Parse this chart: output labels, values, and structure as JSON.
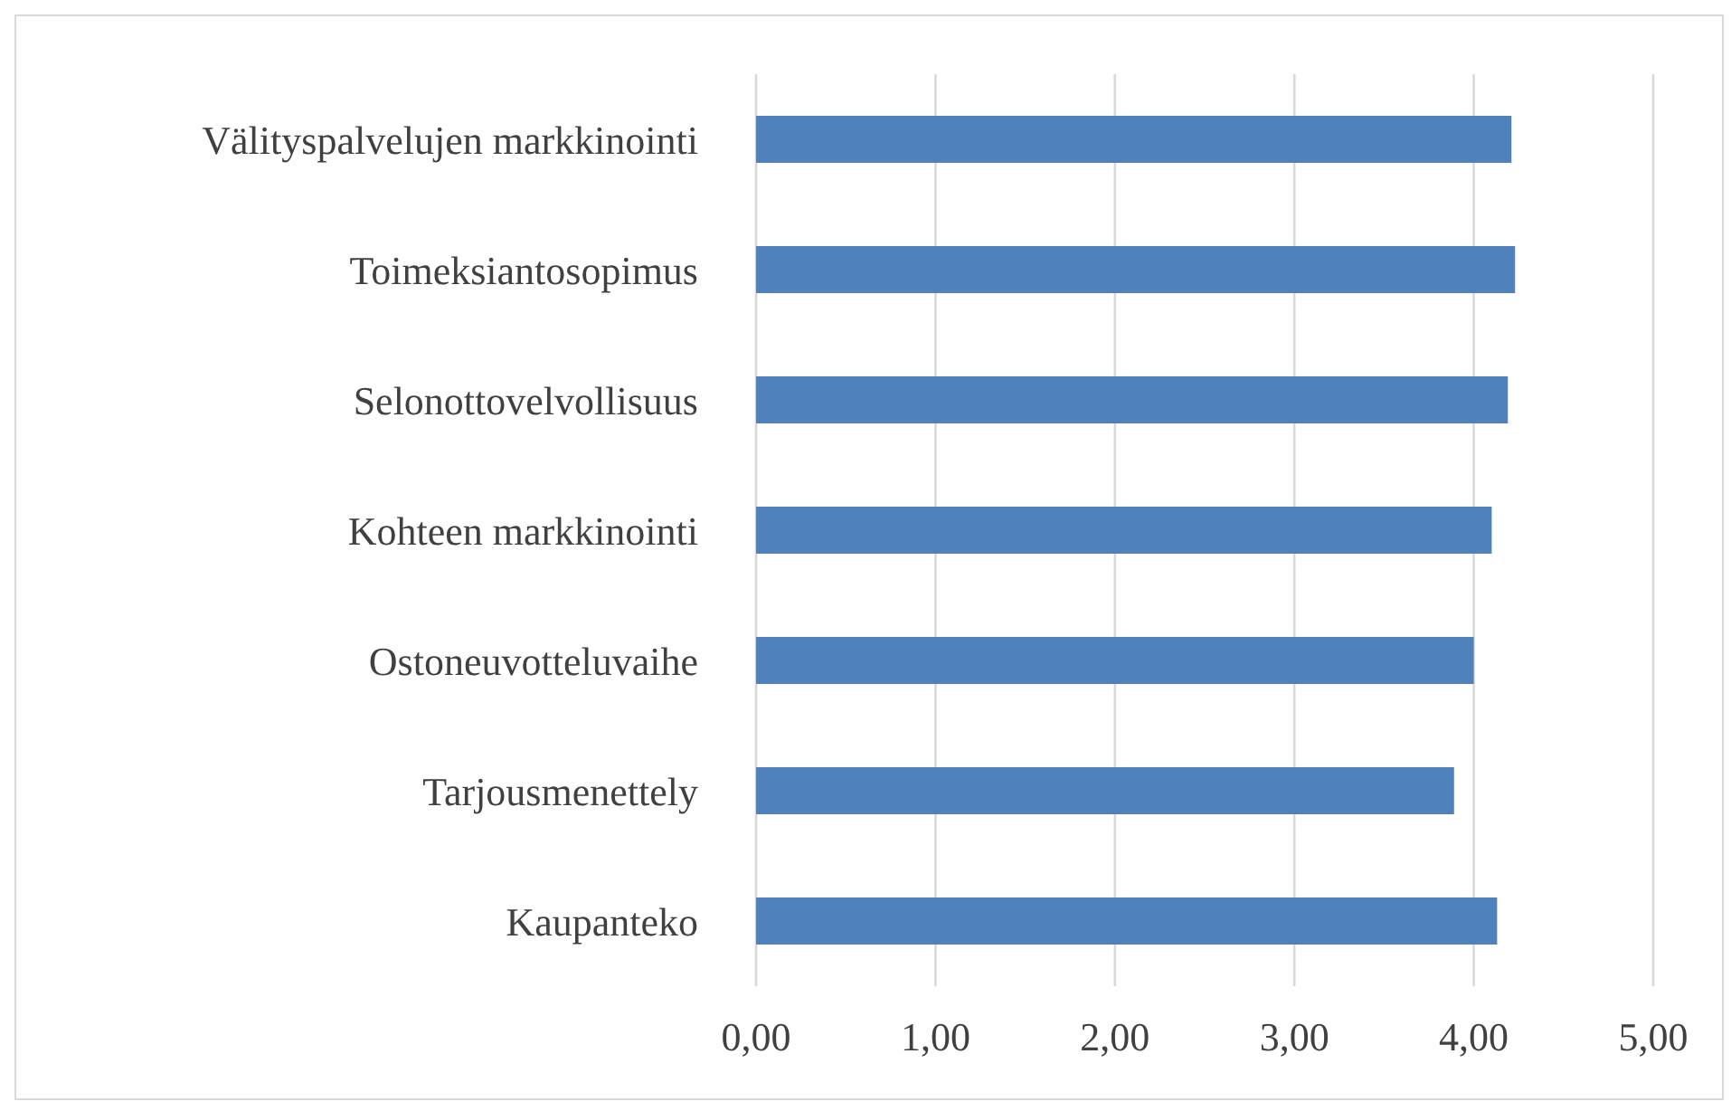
{
  "chart_data": {
    "type": "bar",
    "orientation": "horizontal",
    "categories": [
      "Välityspalvelujen markkinointi",
      "Toimeksiantosopimus",
      "Selonottovelvollisuus",
      "Kohteen markkinointi",
      "Ostoneuvotteluvaihe",
      "Tarjousmenettely",
      "Kaupanteko"
    ],
    "values": [
      4.21,
      4.23,
      4.19,
      4.1,
      4.0,
      3.89,
      4.13
    ],
    "color": "#4f81bd",
    "xlim": [
      0,
      5
    ],
    "xticks": [
      {
        "value": 0,
        "label": "0,00"
      },
      {
        "value": 1,
        "label": "1,00"
      },
      {
        "value": 2,
        "label": "2,00"
      },
      {
        "value": 3,
        "label": "3,00"
      },
      {
        "value": 4,
        "label": "4,00"
      },
      {
        "value": 5,
        "label": "5,00"
      }
    ],
    "grid": "x"
  }
}
